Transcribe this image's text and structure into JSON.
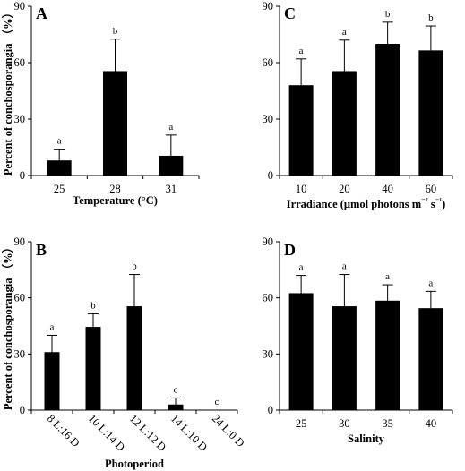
{
  "chart_data": [
    {
      "type": "bar",
      "panel_label": "A",
      "categories": [
        "25",
        "28",
        "31"
      ],
      "values": [
        8,
        55.5,
        10.5
      ],
      "errors": [
        6,
        17,
        11
      ],
      "significance": [
        "a",
        "b",
        "a"
      ],
      "xlabel": "Temperature (°C)",
      "ylabel": "Percent of conchosporangia （%）",
      "ylim": [
        0,
        90
      ],
      "yticks": [
        "0",
        "30",
        "60",
        "90"
      ]
    },
    {
      "type": "bar",
      "panel_label": "C",
      "categories": [
        "10",
        "20",
        "40",
        "60"
      ],
      "values": [
        48,
        55.5,
        70,
        66.5
      ],
      "errors": [
        14,
        16.5,
        11.5,
        13
      ],
      "significance": [
        "a",
        "a",
        "b",
        "b"
      ],
      "xlabel": "Irradiance (μmol photons m⁻² s⁻¹)",
      "ylabel": "",
      "ylim": [
        0,
        90
      ],
      "yticks": [
        "0",
        "30",
        "60",
        "90"
      ]
    },
    {
      "type": "bar",
      "panel_label": "B",
      "categories": [
        "8 L:16 D",
        "10 L:14 D",
        "12 L:12 D",
        "14 L:10 D",
        "24 L:0 D"
      ],
      "values": [
        31,
        44.5,
        55.5,
        3,
        0
      ],
      "errors": [
        9,
        7,
        17,
        3.5,
        0
      ],
      "significance": [
        "a",
        "b",
        "b",
        "c",
        "c"
      ],
      "xlabel": "Photoperiod",
      "ylabel": "Percent of conchosporangia （%）",
      "ylim": [
        0,
        90
      ],
      "yticks": [
        "0",
        "30",
        "60",
        "90"
      ]
    },
    {
      "type": "bar",
      "panel_label": "D",
      "categories": [
        "25",
        "30",
        "35",
        "40"
      ],
      "values": [
        62.5,
        55.5,
        58.5,
        54.5
      ],
      "errors": [
        9.5,
        17,
        8.5,
        9
      ],
      "significance": [
        "a",
        "a",
        "a",
        "a"
      ],
      "xlabel": "Salinity",
      "ylabel": "",
      "ylim": [
        0,
        90
      ],
      "yticks": [
        "0",
        "30",
        "60",
        "90"
      ]
    }
  ]
}
